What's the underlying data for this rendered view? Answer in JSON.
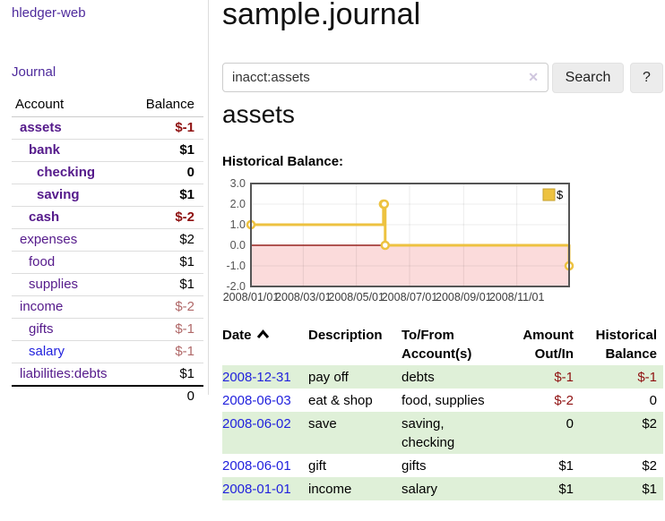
{
  "app": {
    "brand": "hledger-web"
  },
  "nav": {
    "journal": "Journal"
  },
  "sidebar": {
    "headers": {
      "account": "Account",
      "balance": "Balance"
    },
    "accounts": [
      {
        "name": "assets",
        "balance": "$-1"
      },
      {
        "name": "bank",
        "balance": "$1"
      },
      {
        "name": "checking",
        "balance": "0"
      },
      {
        "name": "saving",
        "balance": "$1"
      },
      {
        "name": "cash",
        "balance": "$-2"
      },
      {
        "name": "expenses",
        "balance": "$2"
      },
      {
        "name": "food",
        "balance": "$1"
      },
      {
        "name": "supplies",
        "balance": "$1"
      },
      {
        "name": "income",
        "balance": "$-2"
      },
      {
        "name": "gifts",
        "balance": "$-1"
      },
      {
        "name": "salary",
        "balance": "$-1"
      },
      {
        "name": "liabilities:debts",
        "balance": "$1"
      }
    ],
    "total": "0"
  },
  "header": {
    "title": "sample.journal"
  },
  "search": {
    "value": "inacct:assets",
    "clear_icon": "✕",
    "submit_label": "Search",
    "help_label": "?"
  },
  "account_view": {
    "title": "assets",
    "chart_heading": "Historical Balance:"
  },
  "chart_data": {
    "type": "line",
    "step": true,
    "title": "Historical Balance:",
    "x": [
      "2008-01-01",
      "2008-06-01",
      "2008-06-02",
      "2008-06-03",
      "2008-12-31"
    ],
    "series": [
      {
        "name": "$",
        "color": "#edc240",
        "values": [
          1,
          2,
          2,
          0,
          -1
        ]
      }
    ],
    "xlim": [
      "2008-01-01",
      "2008-12-31"
    ],
    "ylim": [
      -2,
      3
    ],
    "yticks": [
      3.0,
      2.0,
      1.0,
      0.0,
      -1.0,
      -2.0
    ],
    "xticks": [
      {
        "date": "2008-01-01",
        "label": "2008/01/01"
      },
      {
        "date": "2008-03-01",
        "label": "2008/03/01"
      },
      {
        "date": "2008-05-01",
        "label": "2008/05/01"
      },
      {
        "date": "2008-07-01",
        "label": "2008/07/01"
      },
      {
        "date": "2008-09-01",
        "label": "2008/09/01"
      },
      {
        "date": "2008-11-01",
        "label": "2008/11/01"
      }
    ],
    "legend": {
      "label": "$",
      "position": "top-right"
    },
    "grid": true,
    "negative_region_fill": "#fbdbdb",
    "zero_line_color": "#97231f",
    "border_color": "#555555"
  },
  "register": {
    "headers": {
      "date": "Date",
      "description": "Description",
      "accounts": "To/From Account(s)",
      "amount": "Amount Out/In",
      "balance": "Historical Balance"
    },
    "rows": [
      {
        "date": "2008-12-31",
        "description": "pay off",
        "accounts": "debts",
        "amount": "$-1",
        "balance": "$-1"
      },
      {
        "date": "2008-06-03",
        "description": "eat & shop",
        "accounts": "food, supplies",
        "amount": "$-2",
        "balance": "0"
      },
      {
        "date": "2008-06-02",
        "description": "save",
        "accounts": "saving, checking",
        "amount": "0",
        "balance": "$2"
      },
      {
        "date": "2008-06-01",
        "description": "gift",
        "accounts": "gifts",
        "amount": "$1",
        "balance": "$2"
      },
      {
        "date": "2008-01-01",
        "description": "income",
        "accounts": "salary",
        "amount": "$1",
        "balance": "$1"
      }
    ]
  },
  "colors": {
    "accent_gold": "#edc240",
    "negative_strong": "#8f1010",
    "negative_soft": "#b06868",
    "link_purple": "#551a8b",
    "link_blue": "#2222dd",
    "row_green": "#dff0d8"
  }
}
